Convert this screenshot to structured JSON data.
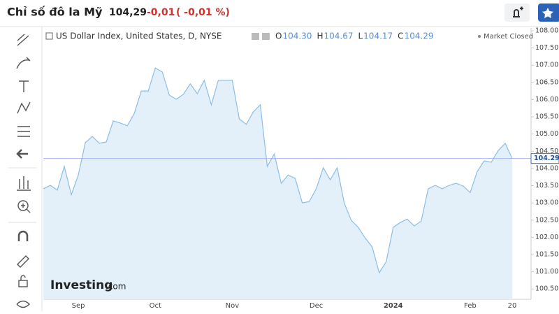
{
  "header": {
    "title": "Chỉ số đô la Mỹ",
    "price": "104,29",
    "change": "-0,01",
    "change_pct": "( -0,01 %)"
  },
  "chart_data": {
    "type": "area",
    "title": "US Dollar Index, United States, D, NYSE",
    "ohlc": [
      {
        "label": "O",
        "value": "104.30"
      },
      {
        "label": "H",
        "value": "104.67"
      },
      {
        "label": "L",
        "value": "104.17"
      },
      {
        "label": "C",
        "value": "104.29"
      }
    ],
    "status": "Market Closed",
    "watermark": [
      "Investing",
      ".com"
    ],
    "color": "#8cbde6",
    "fill": "#e3f0fa",
    "categories": [
      null,
      null,
      null,
      null,
      null,
      "Sep",
      null,
      null,
      null,
      null,
      null,
      null,
      null,
      null,
      null,
      null,
      "Oct",
      null,
      null,
      null,
      null,
      null,
      null,
      null,
      null,
      null,
      null,
      "Nov",
      null,
      null,
      null,
      null,
      null,
      null,
      null,
      null,
      null,
      null,
      null,
      "Dec",
      null,
      null,
      null,
      null,
      null,
      null,
      null,
      null,
      null,
      null,
      "2024",
      null,
      null,
      null,
      null,
      null,
      null,
      null,
      null,
      null,
      null,
      "Feb",
      null,
      null,
      null,
      null,
      null,
      "20"
    ],
    "values": [
      103.41,
      103.51,
      103.37,
      104.06,
      103.24,
      103.81,
      104.75,
      104.93,
      104.73,
      104.77,
      105.38,
      105.32,
      105.24,
      105.6,
      106.25,
      106.25,
      106.92,
      106.8,
      106.13,
      106.01,
      106.15,
      106.46,
      106.17,
      106.56,
      105.85,
      106.56,
      106.56,
      106.56,
      105.44,
      105.28,
      105.64,
      105.85,
      104.06,
      104.42,
      103.57,
      103.81,
      103.71,
      103.0,
      103.04,
      103.41,
      104.02,
      103.67,
      104.02,
      103.0,
      102.49,
      102.29,
      101.98,
      101.72,
      100.97,
      101.29,
      102.29,
      102.43,
      102.53,
      102.33,
      102.47,
      103.41,
      103.51,
      103.41,
      103.51,
      103.57,
      103.49,
      103.3,
      103.91,
      104.22,
      104.18,
      104.52,
      104.73,
      104.29
    ],
    "ylim": [
      100.2,
      108.08
    ],
    "yticks": [
      {
        "value": 100.5,
        "label": "100.50"
      },
      {
        "value": 101,
        "label": "101.00"
      },
      {
        "value": 101.5,
        "label": "101.50"
      },
      {
        "value": 102,
        "label": "102.00"
      },
      {
        "value": 102.5,
        "label": "102.50"
      },
      {
        "value": 103,
        "label": "103.00"
      },
      {
        "value": 103.5,
        "label": "103.50"
      },
      {
        "value": 104,
        "label": "104.00"
      },
      {
        "value": 104.5,
        "label": "104.50"
      },
      {
        "value": 105,
        "label": "105.00"
      },
      {
        "value": 105.5,
        "label": "105.50"
      },
      {
        "value": 106,
        "label": "106.00"
      },
      {
        "value": 106.5,
        "label": "106.50"
      },
      {
        "value": 107,
        "label": "107.00"
      },
      {
        "value": 107.5,
        "label": "107.50"
      },
      {
        "value": 108,
        "label": "108.00"
      }
    ]
  }
}
